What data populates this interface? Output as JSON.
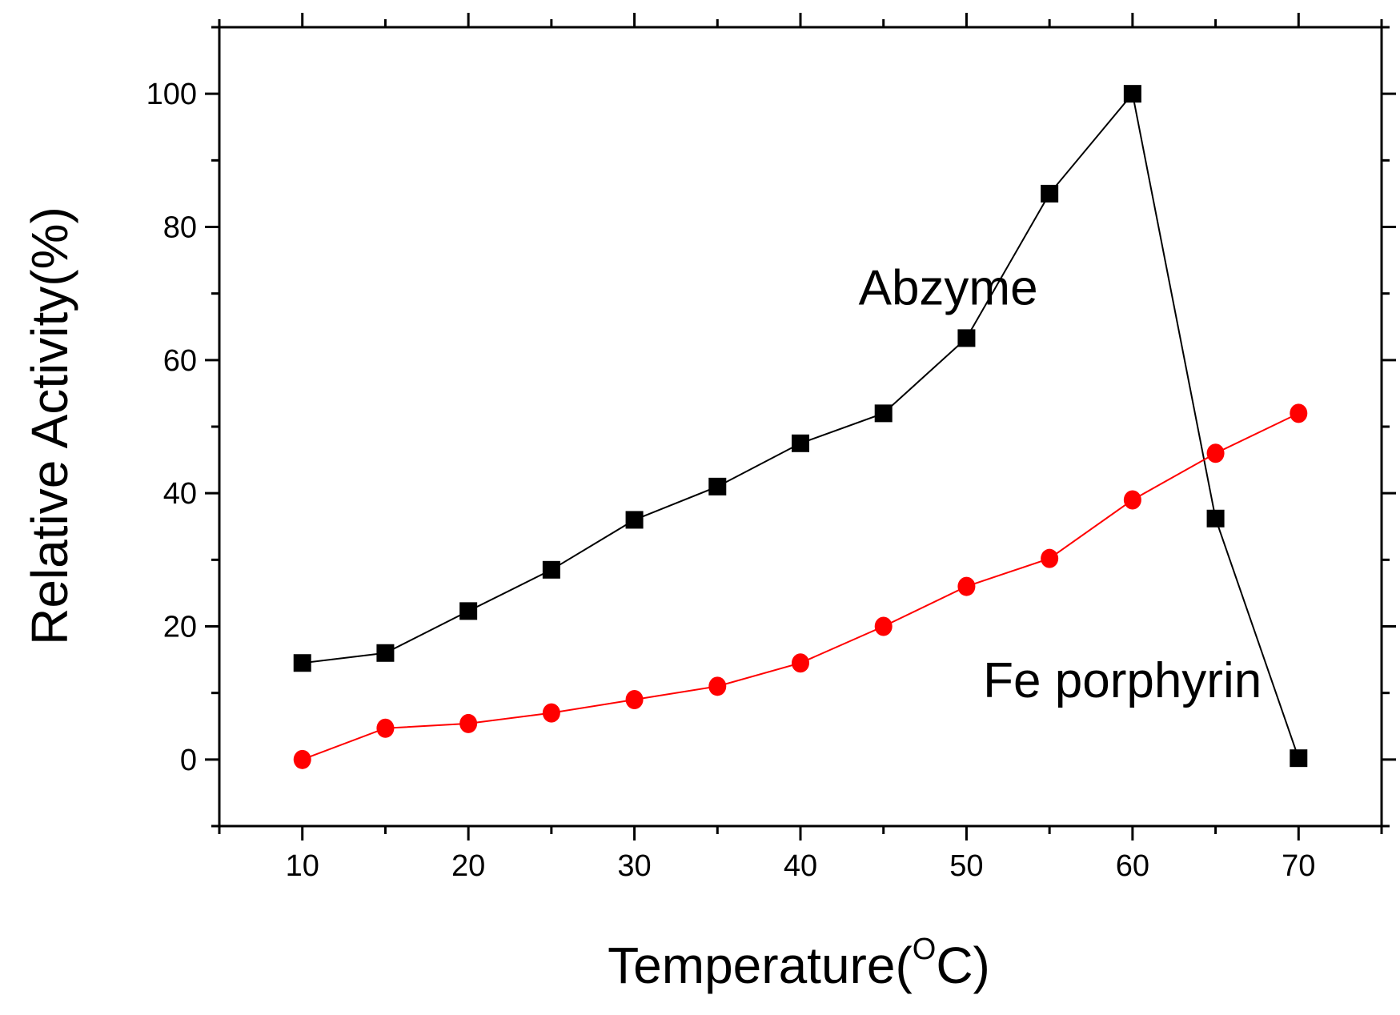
{
  "chart_data": {
    "type": "line",
    "title": "",
    "xlabel": "Temperature(",
    "xlabel_sup": "O",
    "xlabel_unit": "C)",
    "ylabel": "Relative Activity(%)",
    "xlim": [
      5,
      75
    ],
    "ylim": [
      -10,
      110
    ],
    "x_ticks": [
      10,
      20,
      30,
      40,
      50,
      60,
      70
    ],
    "y_ticks": [
      0,
      20,
      40,
      60,
      80,
      100
    ],
    "grid": false,
    "x": [
      10,
      15,
      20,
      25,
      30,
      35,
      40,
      45,
      50,
      55,
      60,
      65,
      70
    ],
    "series": [
      {
        "name": "Abzyme",
        "marker": "square",
        "color": "#000000",
        "values": [
          14.5,
          16,
          22.3,
          28.5,
          36,
          41,
          47.5,
          52,
          63.3,
          85,
          100,
          36.2,
          0.2
        ]
      },
      {
        "name": "Fe porphyrin",
        "marker": "circle",
        "color": "#ff0000",
        "values": [
          0,
          4.7,
          5.4,
          7,
          9,
          11,
          14.5,
          20,
          26,
          30.2,
          39,
          46,
          52
        ]
      }
    ],
    "annotations": [
      {
        "text": "Abzyme",
        "x": 43.5,
        "y": 71
      },
      {
        "text": "Fe porphyrin",
        "x": 51,
        "y": 12
      }
    ]
  }
}
